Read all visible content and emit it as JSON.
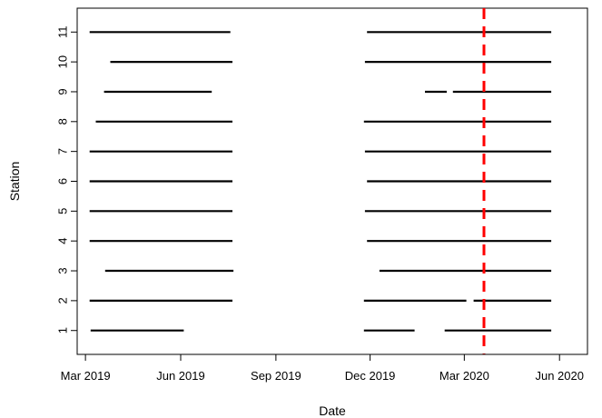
{
  "chart_data": {
    "type": "line",
    "title": "",
    "xlabel": "Date",
    "ylabel": "Station",
    "grid": false,
    "x_type": "date",
    "xlim": [
      "2019-02-21",
      "2020-06-28"
    ],
    "ylim": [
      0.2,
      11.8
    ],
    "x_ticks": [
      {
        "date": "2019-03-01",
        "label": "Mar 2019"
      },
      {
        "date": "2019-06-01",
        "label": "Jun 2019"
      },
      {
        "date": "2019-09-01",
        "label": "Sep 2019"
      },
      {
        "date": "2019-12-01",
        "label": "Dec 2019"
      },
      {
        "date": "2020-03-01",
        "label": "Mar 2020"
      },
      {
        "date": "2020-06-01",
        "label": "Jun 2020"
      }
    ],
    "y_ticks": [
      1,
      2,
      3,
      4,
      5,
      6,
      7,
      8,
      9,
      10,
      11
    ],
    "line_color": "#000000",
    "stations": [
      {
        "station": 1,
        "segments": [
          [
            "2019-03-06",
            "2019-06-04"
          ],
          [
            "2019-11-25",
            "2020-01-13"
          ],
          [
            "2020-02-11",
            "2020-05-24"
          ]
        ]
      },
      {
        "station": 2,
        "segments": [
          [
            "2019-03-05",
            "2019-07-21"
          ],
          [
            "2019-11-25",
            "2020-03-03"
          ],
          [
            "2020-03-10",
            "2020-05-24"
          ]
        ]
      },
      {
        "station": 3,
        "segments": [
          [
            "2019-03-20",
            "2019-07-22"
          ],
          [
            "2019-12-10",
            "2020-05-24"
          ]
        ]
      },
      {
        "station": 4,
        "segments": [
          [
            "2019-03-05",
            "2019-07-21"
          ],
          [
            "2019-11-28",
            "2020-05-24"
          ]
        ]
      },
      {
        "station": 5,
        "segments": [
          [
            "2019-03-05",
            "2019-07-21"
          ],
          [
            "2019-11-26",
            "2020-05-24"
          ]
        ]
      },
      {
        "station": 6,
        "segments": [
          [
            "2019-03-05",
            "2019-07-21"
          ],
          [
            "2019-11-28",
            "2020-05-24"
          ]
        ]
      },
      {
        "station": 7,
        "segments": [
          [
            "2019-03-05",
            "2019-07-21"
          ],
          [
            "2019-11-26",
            "2020-05-24"
          ]
        ]
      },
      {
        "station": 8,
        "segments": [
          [
            "2019-03-11",
            "2019-07-21"
          ],
          [
            "2019-11-25",
            "2020-05-24"
          ]
        ]
      },
      {
        "station": 9,
        "segments": [
          [
            "2019-03-19",
            "2019-07-01"
          ],
          [
            "2020-01-23",
            "2020-02-13"
          ],
          [
            "2020-02-19",
            "2020-05-24"
          ]
        ]
      },
      {
        "station": 10,
        "segments": [
          [
            "2019-03-25",
            "2019-07-21"
          ],
          [
            "2019-11-26",
            "2020-05-24"
          ]
        ]
      },
      {
        "station": 11,
        "segments": [
          [
            "2019-03-05",
            "2019-07-19"
          ],
          [
            "2019-11-28",
            "2020-05-24"
          ]
        ]
      }
    ],
    "reference_line": {
      "date": "2020-03-20",
      "color": "#ff0000",
      "style": "dashed"
    }
  }
}
